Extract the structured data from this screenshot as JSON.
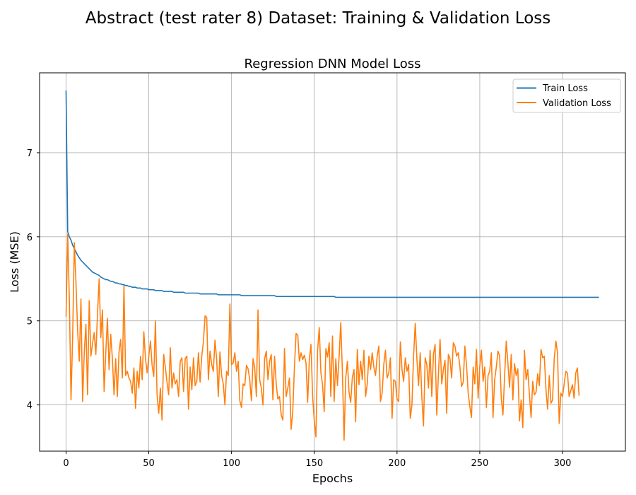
{
  "chart_data": {
    "type": "line",
    "suptitle": "Abstract (test rater 8) Dataset: Training & Validation Loss",
    "title": "Regression DNN Model Loss",
    "xlabel": "Epochs",
    "ylabel": "Loss (MSE)",
    "xlim": [
      -16,
      338
    ],
    "ylim": [
      3.45,
      7.95
    ],
    "xticks": [
      0,
      50,
      100,
      150,
      200,
      250,
      300
    ],
    "yticks": [
      4,
      5,
      6,
      7
    ],
    "grid": true,
    "legend_position": "top-right",
    "series": [
      {
        "name": "Train Loss",
        "color": "#1f77b4",
        "values": [
          7.74,
          6.06,
          6.0,
          5.96,
          5.9,
          5.86,
          5.82,
          5.78,
          5.75,
          5.72,
          5.7,
          5.68,
          5.66,
          5.64,
          5.62,
          5.6,
          5.58,
          5.57,
          5.56,
          5.55,
          5.54,
          5.52,
          5.51,
          5.5,
          5.49,
          5.49,
          5.48,
          5.47,
          5.47,
          5.46,
          5.45,
          5.45,
          5.44,
          5.44,
          5.43,
          5.43,
          5.42,
          5.42,
          5.41,
          5.41,
          5.4,
          5.4,
          5.4,
          5.39,
          5.39,
          5.39,
          5.38,
          5.38,
          5.38,
          5.38,
          5.37,
          5.37,
          5.37,
          5.37,
          5.36,
          5.36,
          5.36,
          5.36,
          5.36,
          5.35,
          5.35,
          5.35,
          5.35,
          5.35,
          5.35,
          5.34,
          5.34,
          5.34,
          5.34,
          5.34,
          5.34,
          5.34,
          5.33,
          5.33,
          5.33,
          5.33,
          5.33,
          5.33,
          5.33,
          5.33,
          5.33,
          5.32,
          5.32,
          5.32,
          5.32,
          5.32,
          5.32,
          5.32,
          5.32,
          5.32,
          5.32,
          5.32,
          5.31,
          5.31,
          5.31,
          5.31,
          5.31,
          5.31,
          5.31,
          5.31,
          5.31,
          5.31,
          5.31,
          5.31,
          5.31,
          5.31,
          5.3,
          5.3,
          5.3,
          5.3,
          5.3,
          5.3,
          5.3,
          5.3,
          5.3,
          5.3,
          5.3,
          5.3,
          5.3,
          5.3,
          5.3,
          5.3,
          5.3,
          5.3,
          5.3,
          5.3,
          5.3,
          5.29,
          5.29,
          5.29,
          5.29,
          5.29,
          5.29,
          5.29,
          5.29,
          5.29,
          5.29,
          5.29,
          5.29,
          5.29,
          5.29,
          5.29,
          5.29,
          5.29,
          5.29,
          5.29,
          5.29,
          5.29,
          5.29,
          5.29,
          5.29,
          5.29,
          5.29,
          5.29,
          5.29,
          5.29,
          5.29,
          5.29,
          5.29,
          5.29,
          5.29,
          5.29,
          5.29,
          5.28,
          5.28,
          5.28,
          5.28,
          5.28,
          5.28,
          5.28,
          5.28,
          5.28,
          5.28,
          5.28,
          5.28,
          5.28,
          5.28,
          5.28,
          5.28,
          5.28,
          5.28,
          5.28,
          5.28,
          5.28,
          5.28,
          5.28,
          5.28,
          5.28,
          5.28,
          5.28,
          5.28,
          5.28,
          5.28,
          5.28,
          5.28,
          5.28,
          5.28,
          5.28,
          5.28,
          5.28,
          5.28,
          5.28,
          5.28,
          5.28,
          5.28,
          5.28,
          5.28,
          5.28,
          5.28,
          5.28,
          5.28,
          5.28,
          5.28,
          5.28,
          5.28,
          5.28,
          5.28,
          5.28,
          5.28,
          5.28,
          5.28,
          5.28,
          5.28,
          5.28,
          5.28,
          5.28,
          5.28,
          5.28,
          5.28,
          5.28,
          5.28,
          5.28,
          5.28,
          5.28,
          5.28,
          5.28,
          5.28,
          5.28,
          5.28,
          5.28,
          5.28,
          5.28,
          5.28,
          5.28,
          5.28,
          5.28,
          5.28,
          5.28,
          5.28,
          5.28,
          5.28,
          5.28,
          5.28,
          5.28,
          5.28,
          5.28,
          5.28,
          5.28,
          5.28,
          5.28,
          5.28,
          5.28,
          5.28,
          5.28,
          5.28,
          5.28,
          5.28,
          5.28,
          5.28,
          5.28,
          5.28,
          5.28,
          5.28,
          5.28,
          5.28,
          5.28,
          5.28,
          5.28,
          5.28,
          5.28,
          5.28,
          5.28,
          5.28,
          5.28,
          5.28,
          5.28,
          5.28,
          5.28,
          5.28,
          5.28,
          5.28,
          5.28,
          5.28,
          5.28,
          5.28,
          5.28,
          5.28,
          5.28,
          5.28,
          5.28,
          5.28,
          5.28,
          5.28,
          5.28,
          5.28,
          5.28,
          5.28,
          5.28,
          5.28,
          5.28,
          5.28,
          5.28,
          5.28,
          5.28,
          5.28,
          5.28,
          5.28,
          5.28,
          5.28,
          5.28,
          5.28,
          5.28,
          5.28
        ]
      },
      {
        "name": "Validation Loss",
        "color": "#ff7f0e",
        "values": [
          5.05,
          6.03,
          5.25,
          4.06,
          4.82,
          5.93,
          5.45,
          4.88,
          4.52,
          5.26,
          4.04,
          4.62,
          4.96,
          4.12,
          5.24,
          4.58,
          4.73,
          4.86,
          4.6,
          5.08,
          5.5,
          4.8,
          5.13,
          4.16,
          4.62,
          5.03,
          4.42,
          4.84,
          4.55,
          4.12,
          4.55,
          4.1,
          4.63,
          4.78,
          4.32,
          5.42,
          4.35,
          4.4,
          4.32,
          4.28,
          4.14,
          4.44,
          3.96,
          4.4,
          4.2,
          4.58,
          4.3,
          4.87,
          4.55,
          4.38,
          4.58,
          4.76,
          4.47,
          4.34,
          5.0,
          4.12,
          3.9,
          4.2,
          3.82,
          4.6,
          4.45,
          4.27,
          4.12,
          4.68,
          4.2,
          4.38,
          4.25,
          4.3,
          4.1,
          4.52,
          4.56,
          4.16,
          4.55,
          4.58,
          3.95,
          4.45,
          4.18,
          4.56,
          4.23,
          4.28,
          4.62,
          4.27,
          4.58,
          4.75,
          5.06,
          5.04,
          4.3,
          4.64,
          4.48,
          4.4,
          4.77,
          4.55,
          4.1,
          4.63,
          4.35,
          4.25,
          4.0,
          4.4,
          4.35,
          5.2,
          4.48,
          4.5,
          4.62,
          4.4,
          4.52,
          4.05,
          3.97,
          4.25,
          4.23,
          4.47,
          4.43,
          4.3,
          4.05,
          4.55,
          4.44,
          4.1,
          5.13,
          4.3,
          4.2,
          4.0,
          4.55,
          4.64,
          4.3,
          4.52,
          4.6,
          4.06,
          4.58,
          4.25,
          4.07,
          4.1,
          3.88,
          3.82,
          4.67,
          4.1,
          4.2,
          4.32,
          3.71,
          3.92,
          4.45,
          4.85,
          4.83,
          4.52,
          4.62,
          4.54,
          4.59,
          4.5,
          4.03,
          4.54,
          4.72,
          4.1,
          3.81,
          3.62,
          4.65,
          4.92,
          4.38,
          4.24,
          3.92,
          4.67,
          4.57,
          4.74,
          4.1,
          4.82,
          4.04,
          4.55,
          4.23,
          4.58,
          4.98,
          4.38,
          3.58,
          4.32,
          4.52,
          4.15,
          4.03,
          4.33,
          4.42,
          3.8,
          4.66,
          4.24,
          4.52,
          4.3,
          4.65,
          4.1,
          4.25,
          4.58,
          4.42,
          4.62,
          4.45,
          4.35,
          4.58,
          4.7,
          4.04,
          4.14,
          4.48,
          4.65,
          4.32,
          4.38,
          4.56,
          3.84,
          4.3,
          4.28,
          4.07,
          4.04,
          4.75,
          4.42,
          4.28,
          4.56,
          4.4,
          4.48,
          3.84,
          4.0,
          4.58,
          4.97,
          4.55,
          4.23,
          4.62,
          4.09,
          3.75,
          4.56,
          4.48,
          4.2,
          4.65,
          4.1,
          4.6,
          4.72,
          3.88,
          4.36,
          4.78,
          4.25,
          4.42,
          4.53,
          3.9,
          4.6,
          4.55,
          4.32,
          4.74,
          4.7,
          4.58,
          4.62,
          4.45,
          4.22,
          4.27,
          4.7,
          4.47,
          4.14,
          3.98,
          3.85,
          4.45,
          4.25,
          4.66,
          4.08,
          4.46,
          4.65,
          4.28,
          4.45,
          3.97,
          4.35,
          4.4,
          4.62,
          3.85,
          4.3,
          4.45,
          4.64,
          4.58,
          4.08,
          3.88,
          4.34,
          4.76,
          4.5,
          4.21,
          4.6,
          4.06,
          4.49,
          4.35,
          4.43,
          3.81,
          4.06,
          3.73,
          4.65,
          4.3,
          4.42,
          4.12,
          3.85,
          4.28,
          4.12,
          4.15,
          4.37,
          4.23,
          4.66,
          4.56,
          4.58,
          4.18,
          3.95,
          4.35,
          4.02,
          4.06,
          4.55,
          4.76,
          4.62,
          3.78,
          4.14,
          4.1,
          4.25,
          4.4,
          4.38,
          4.1,
          4.17,
          4.24,
          4.08,
          4.38,
          4.44,
          4.11
        ]
      }
    ]
  }
}
